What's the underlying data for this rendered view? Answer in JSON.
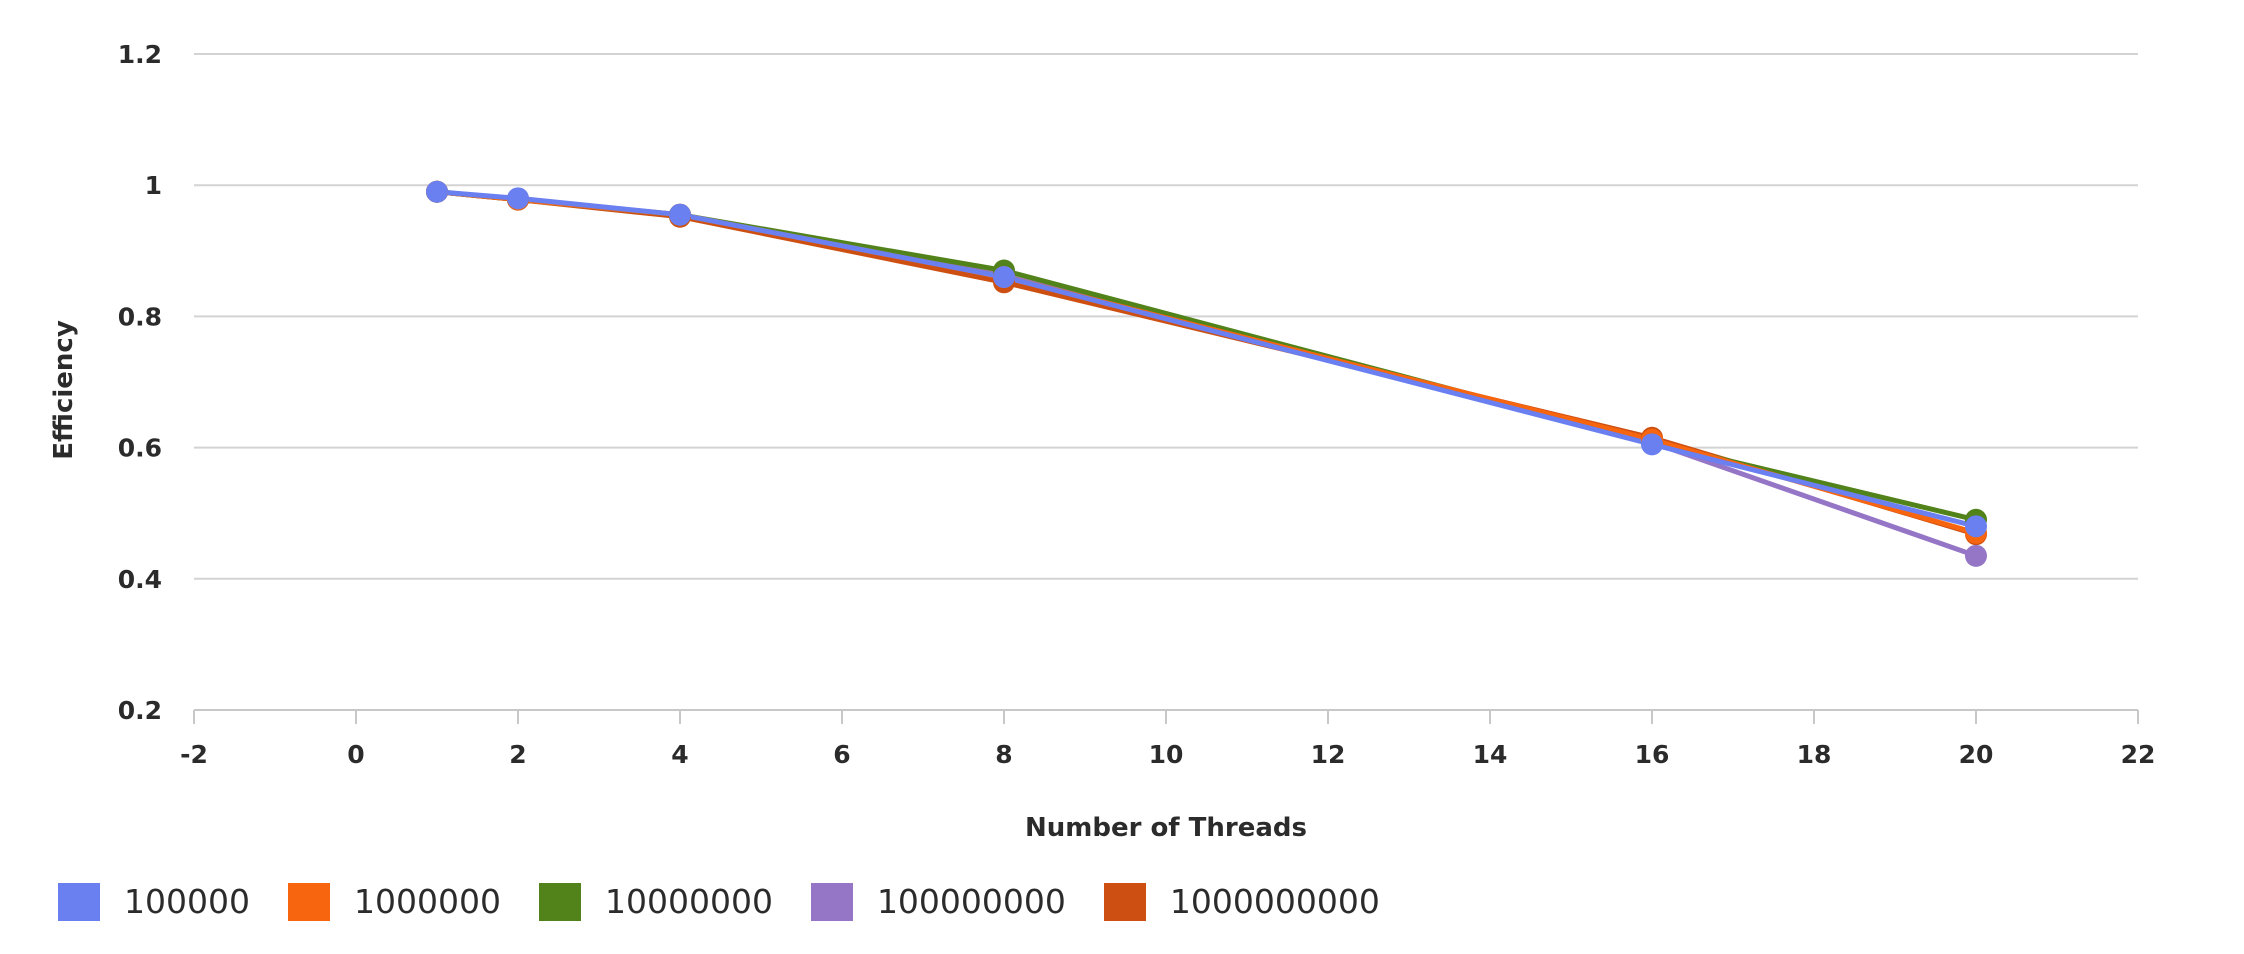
{
  "chart_data": {
    "type": "line",
    "title": "",
    "xlabel": "Number of Threads",
    "ylabel": "Efficiency",
    "xlim": [
      -2,
      22
    ],
    "ylim": [
      0.2,
      1.2
    ],
    "xticks": [
      -2,
      0,
      2,
      4,
      6,
      8,
      10,
      12,
      14,
      16,
      18,
      20,
      22
    ],
    "yticks": [
      0.2,
      0.4,
      0.6,
      0.8,
      1,
      1.2
    ],
    "ytick_labels": [
      "0.2",
      "0.4",
      "0.6",
      "0.8",
      "1",
      "1.2"
    ],
    "grid": "horizontal",
    "legend_position": "bottom-left",
    "x": [
      1,
      2,
      4,
      8,
      16,
      20
    ],
    "series": [
      {
        "name": "100000",
        "color": "#6a7ff0",
        "values": [
          0.99,
          0.98,
          0.955,
          0.86,
          0.605,
          0.48
        ]
      },
      {
        "name": "1000000",
        "color": "#f7650f",
        "values": [
          0.99,
          0.978,
          0.955,
          0.86,
          0.612,
          0.47
        ]
      },
      {
        "name": "10000000",
        "color": "#52831a",
        "values": [
          0.99,
          0.978,
          0.955,
          0.87,
          0.608,
          0.49
        ]
      },
      {
        "name": "100000000",
        "color": "#9575c5",
        "values": [
          0.99,
          0.978,
          0.955,
          0.862,
          0.608,
          0.435
        ]
      },
      {
        "name": "1000000000",
        "color": "#cd5012",
        "values": [
          0.99,
          0.978,
          0.952,
          0.852,
          0.615,
          0.468
        ]
      }
    ]
  }
}
